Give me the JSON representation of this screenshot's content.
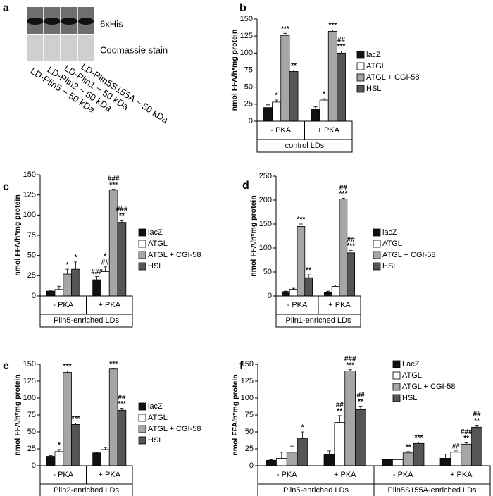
{
  "blot": {
    "panel": "a",
    "rows": [
      "6xHis",
      "Coomassie stain"
    ],
    "lanes": [
      "LD-Plin5 ~ 50 kDa",
      "LD-Plin2 ~ 50 kDa",
      "LD-Plin1 ~ 50 kDa",
      "LD-Plin5S155A ~ 50 kDa"
    ]
  },
  "chart_data": [
    {
      "type": "bar",
      "panel": "b",
      "ylabel": "nmol FFA/h*mg protein",
      "ylim": [
        0,
        150
      ],
      "yticks": [
        0,
        25,
        50,
        75,
        100,
        125,
        150
      ],
      "categories": [
        "- PKA",
        "+ PKA"
      ],
      "group_labels": [
        "control LDs"
      ],
      "series": [
        {
          "name": "lacZ",
          "color": "#111111",
          "values": [
            20,
            18
          ],
          "errors": [
            4,
            3
          ],
          "labels": [
            null,
            null
          ]
        },
        {
          "name": "ATGL",
          "color": "#ffffff",
          "values": [
            28,
            31
          ],
          "errors": [
            3,
            2
          ],
          "labels": [
            [
              "*"
            ],
            [
              "*"
            ]
          ]
        },
        {
          "name": "ATGL + CGI-58",
          "color": "#a6a6a6",
          "values": [
            126,
            132
          ],
          "errors": [
            3,
            2
          ],
          "labels": [
            [
              "***"
            ],
            [
              "***"
            ]
          ]
        },
        {
          "name": "HSL",
          "color": "#555555",
          "values": [
            73,
            100
          ],
          "errors": [
            2,
            3
          ],
          "labels": [
            [
              "**"
            ],
            [
              "##",
              "***"
            ]
          ]
        }
      ]
    },
    {
      "type": "bar",
      "panel": "c",
      "ylabel": "nmol FFA/h*mg protein",
      "ylim": [
        0,
        150
      ],
      "yticks": [
        0,
        25,
        50,
        75,
        100,
        125,
        150
      ],
      "categories": [
        "- PKA",
        "+ PKA"
      ],
      "group_labels": [
        "Plin5-enriched LDs"
      ],
      "series": [
        {
          "name": "lacZ",
          "color": "#111111",
          "values": [
            6,
            20
          ],
          "errors": [
            1,
            4
          ],
          "labels": [
            null,
            [
              "###"
            ]
          ]
        },
        {
          "name": "ATGL",
          "color": "#ffffff",
          "values": [
            8,
            30
          ],
          "errors": [
            4,
            6
          ],
          "labels": [
            null,
            [
              "*",
              "##"
            ]
          ]
        },
        {
          "name": "ATGL + CGI-58",
          "color": "#a6a6a6",
          "values": [
            27,
            131
          ],
          "errors": [
            6,
            1
          ],
          "labels": [
            [
              "*"
            ],
            [
              "###",
              "***"
            ]
          ]
        },
        {
          "name": "HSL",
          "color": "#555555",
          "values": [
            33,
            91
          ],
          "errors": [
            9,
            3
          ],
          "labels": [
            [
              "*"
            ],
            [
              "###",
              "**"
            ]
          ]
        }
      ]
    },
    {
      "type": "bar",
      "panel": "d",
      "ylabel": "nmol FFA/h*mg protein",
      "ylim": [
        0,
        250
      ],
      "yticks": [
        0,
        50,
        100,
        150,
        200,
        250
      ],
      "categories": [
        "- PKA",
        "+ PKA"
      ],
      "group_labels": [
        "Plin1-enriched LDs"
      ],
      "series": [
        {
          "name": "lacZ",
          "color": "#111111",
          "values": [
            9,
            7
          ],
          "errors": [
            1,
            3
          ],
          "labels": [
            null,
            null
          ]
        },
        {
          "name": "ATGL",
          "color": "#ffffff",
          "values": [
            14,
            20
          ],
          "errors": [
            2,
            3
          ],
          "labels": [
            null,
            null
          ]
        },
        {
          "name": "ATGL + CGI-58",
          "color": "#a6a6a6",
          "values": [
            145,
            202
          ],
          "errors": [
            5,
            2
          ],
          "labels": [
            [
              "***"
            ],
            [
              "##",
              "***"
            ]
          ]
        },
        {
          "name": "HSL",
          "color": "#555555",
          "values": [
            38,
            90
          ],
          "errors": [
            6,
            5
          ],
          "labels": [
            [
              "**"
            ],
            [
              "##",
              "***"
            ]
          ]
        }
      ]
    },
    {
      "type": "bar",
      "panel": "e",
      "ylabel": "nmol FFA/h*mg protein",
      "ylim": [
        0,
        150
      ],
      "yticks": [
        0,
        25,
        50,
        75,
        100,
        125,
        150
      ],
      "categories": [
        "- PKA",
        "+ PKA"
      ],
      "group_labels": [
        "Plin2-enriched LDs"
      ],
      "series": [
        {
          "name": "lacZ",
          "color": "#111111",
          "values": [
            14,
            19
          ],
          "errors": [
            1,
            1
          ],
          "labels": [
            null,
            null
          ]
        },
        {
          "name": "ATGL",
          "color": "#ffffff",
          "values": [
            21,
            24
          ],
          "errors": [
            3,
            3
          ],
          "labels": [
            [
              "*"
            ],
            null
          ]
        },
        {
          "name": "ATGL + CGI-58",
          "color": "#a6a6a6",
          "values": [
            138,
            143
          ],
          "errors": [
            2,
            1
          ],
          "labels": [
            [
              "***"
            ],
            [
              "***"
            ]
          ]
        },
        {
          "name": "HSL",
          "color": "#555555",
          "values": [
            61,
            82
          ],
          "errors": [
            2,
            3
          ],
          "labels": [
            [
              "***"
            ],
            [
              "##",
              "***"
            ]
          ]
        }
      ]
    },
    {
      "type": "bar",
      "panel": "f",
      "ylabel": "nmol FFA/h*mg protein",
      "ylim": [
        0,
        150
      ],
      "yticks": [
        0,
        25,
        50,
        75,
        100,
        125,
        150
      ],
      "categories": [
        "- PKA",
        "+ PKA",
        "- PKA",
        "+ PKA"
      ],
      "group_labels": [
        "Plin5-enriched LDs",
        "Plin5S155A-enriched LDs"
      ],
      "series": [
        {
          "name": "LacZ",
          "color": "#111111",
          "values": [
            8,
            17,
            9,
            11
          ],
          "errors": [
            1,
            5,
            1,
            6
          ],
          "labels": [
            null,
            null,
            null,
            null
          ]
        },
        {
          "name": "ATGL",
          "color": "#ffffff",
          "values": [
            11,
            64,
            9,
            20
          ],
          "errors": [
            9,
            10,
            1,
            2
          ],
          "labels": [
            null,
            [
              "##",
              "**"
            ],
            null,
            [
              "##"
            ]
          ]
        },
        {
          "name": "ATGL + CGI-58",
          "color": "#a6a6a6",
          "values": [
            20,
            140,
            19,
            32
          ],
          "errors": [
            9,
            2,
            2,
            2
          ],
          "labels": [
            null,
            [
              "###",
              "***"
            ],
            [
              "**"
            ],
            [
              "###",
              "**"
            ]
          ]
        },
        {
          "name": "HSL",
          "color": "#555555",
          "values": [
            40,
            83,
            33,
            57
          ],
          "errors": [
            10,
            5,
            2,
            3
          ],
          "labels": [
            [
              "*"
            ],
            [
              "##",
              "**"
            ],
            [
              "***"
            ],
            [
              "##",
              "**"
            ]
          ]
        }
      ]
    }
  ]
}
